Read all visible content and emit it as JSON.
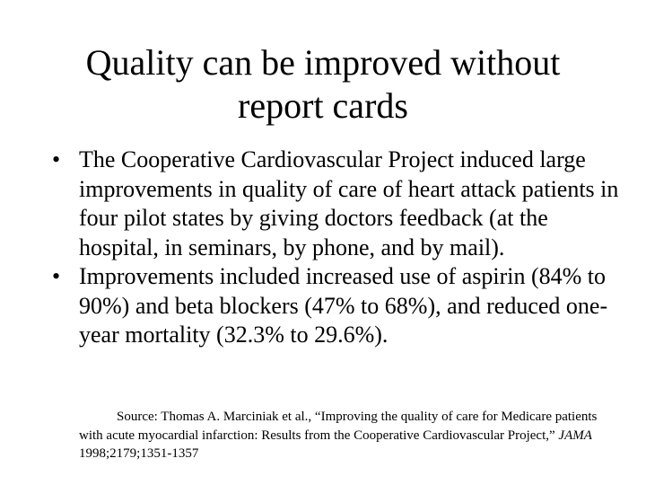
{
  "slide": {
    "title_line1": "Quality can be improved without",
    "title_line2": "report cards",
    "bullets": [
      {
        "mark": "•",
        "text": "The Cooperative Cardiovascular Project induced large improvements in quality of care of heart attack patients in four pilot states by giving doctors feedback (at the hospital, in seminars, by phone, and by mail)."
      },
      {
        "mark": "•",
        "text": "Improvements included increased use of aspirin (84% to 90%) and beta blockers (47% to 68%), and reduced one-year mortality (32.3% to 29.6%)."
      }
    ],
    "source": {
      "prefix": "Source: Thomas A. Marciniak et al., “Improving the quality of care for Medicare patients with acute myocardial infarction: Results from the Cooperative Cardiovascular Project,” ",
      "journal": "JAMA",
      "suffix": " 1998;2179;1351-1357"
    }
  }
}
